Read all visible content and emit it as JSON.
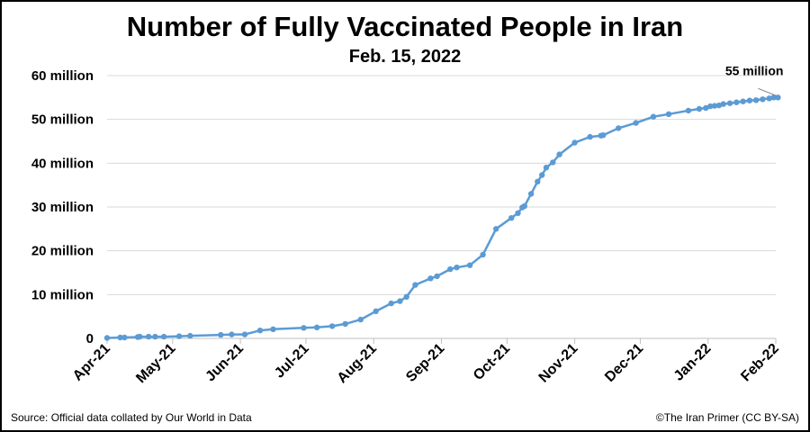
{
  "header": {
    "title": "Number of Fully Vaccinated People in Iran",
    "subtitle": "Feb. 15, 2022"
  },
  "footer": {
    "source": "Source: Official data collated by Our World in Data",
    "credit": "©The Iran Primer (CC BY-SA)"
  },
  "chart_data": {
    "type": "line",
    "title": "Number of Fully Vaccinated People in Iran",
    "subtitle": "Feb. 15, 2022",
    "ytick_labels": [
      "0",
      "10 million",
      "20 million",
      "30 million",
      "40 million",
      "50 million",
      "60 million"
    ],
    "ytick_values": [
      0,
      10000000,
      20000000,
      30000000,
      40000000,
      50000000,
      60000000
    ],
    "xtick_labels": [
      "Apr-21",
      "May-21",
      "Jun-21",
      "Jul-21",
      "Aug-21",
      "Sep-21",
      "Oct-21",
      "Nov-21",
      "Dec-21",
      "Jan-22",
      "Feb-22"
    ],
    "xtick_dates": [
      "2021-04-01",
      "2021-05-01",
      "2021-06-01",
      "2021-07-01",
      "2021-08-01",
      "2021-09-01",
      "2021-10-01",
      "2021-11-01",
      "2021-12-01",
      "2022-01-01",
      "2022-02-01"
    ],
    "ylim": [
      0,
      60000000
    ],
    "xlim": [
      "2021-04-01",
      "2022-02-01"
    ],
    "grid": "horizontal",
    "color": "#5b9bd5",
    "annotation": {
      "text": "55 million",
      "x": "2022-02-01",
      "y": 55000000
    },
    "series": [
      {
        "x": [
          "2021-04-01",
          "2021-04-07",
          "2021-04-09",
          "2021-04-15",
          "2021-04-16",
          "2021-04-20",
          "2021-04-23",
          "2021-04-27",
          "2021-05-04",
          "2021-05-09",
          "2021-05-23",
          "2021-05-28",
          "2021-06-03",
          "2021-06-10",
          "2021-06-16",
          "2021-06-30",
          "2021-07-06",
          "2021-07-13",
          "2021-07-19",
          "2021-07-26",
          "2021-08-02",
          "2021-08-09",
          "2021-08-13",
          "2021-08-16",
          "2021-08-20",
          "2021-08-27",
          "2021-08-30",
          "2021-09-05",
          "2021-09-08",
          "2021-09-14",
          "2021-09-20",
          "2021-09-26",
          "2021-10-03",
          "2021-10-06",
          "2021-10-08",
          "2021-10-09",
          "2021-10-12",
          "2021-10-15",
          "2021-10-17",
          "2021-10-19",
          "2021-10-22",
          "2021-10-25",
          "2021-11-01",
          "2021-11-08",
          "2021-11-13",
          "2021-11-14",
          "2021-11-21",
          "2021-11-29",
          "2021-12-07",
          "2021-12-14",
          "2021-12-23",
          "2021-12-28",
          "2021-12-31",
          "2022-01-02",
          "2022-01-04",
          "2022-01-06",
          "2022-01-08",
          "2022-01-11",
          "2022-01-14",
          "2022-01-17",
          "2022-01-20",
          "2022-01-23",
          "2022-01-26",
          "2022-01-29",
          "2022-01-31",
          "2022-02-02"
        ],
        "values": [
          100000,
          200000,
          200000,
          300000,
          400000,
          400000,
          400000,
          400000,
          500000,
          600000,
          800000,
          900000,
          900000,
          1800000,
          2100000,
          2400000,
          2500000,
          2800000,
          3300000,
          4300000,
          6200000,
          8000000,
          8500000,
          9500000,
          12200000,
          13700000,
          14200000,
          15800000,
          16200000,
          16700000,
          19100000,
          25000000,
          27500000,
          28600000,
          29900000,
          30200000,
          33000000,
          35800000,
          37300000,
          39000000,
          40200000,
          42000000,
          44700000,
          46000000,
          46300000,
          46400000,
          48000000,
          49200000,
          50600000,
          51200000,
          52000000,
          52400000,
          52600000,
          53000000,
          53100000,
          53200000,
          53500000,
          53700000,
          53900000,
          54100000,
          54300000,
          54400000,
          54600000,
          54800000,
          55000000,
          55000000
        ]
      }
    ]
  }
}
